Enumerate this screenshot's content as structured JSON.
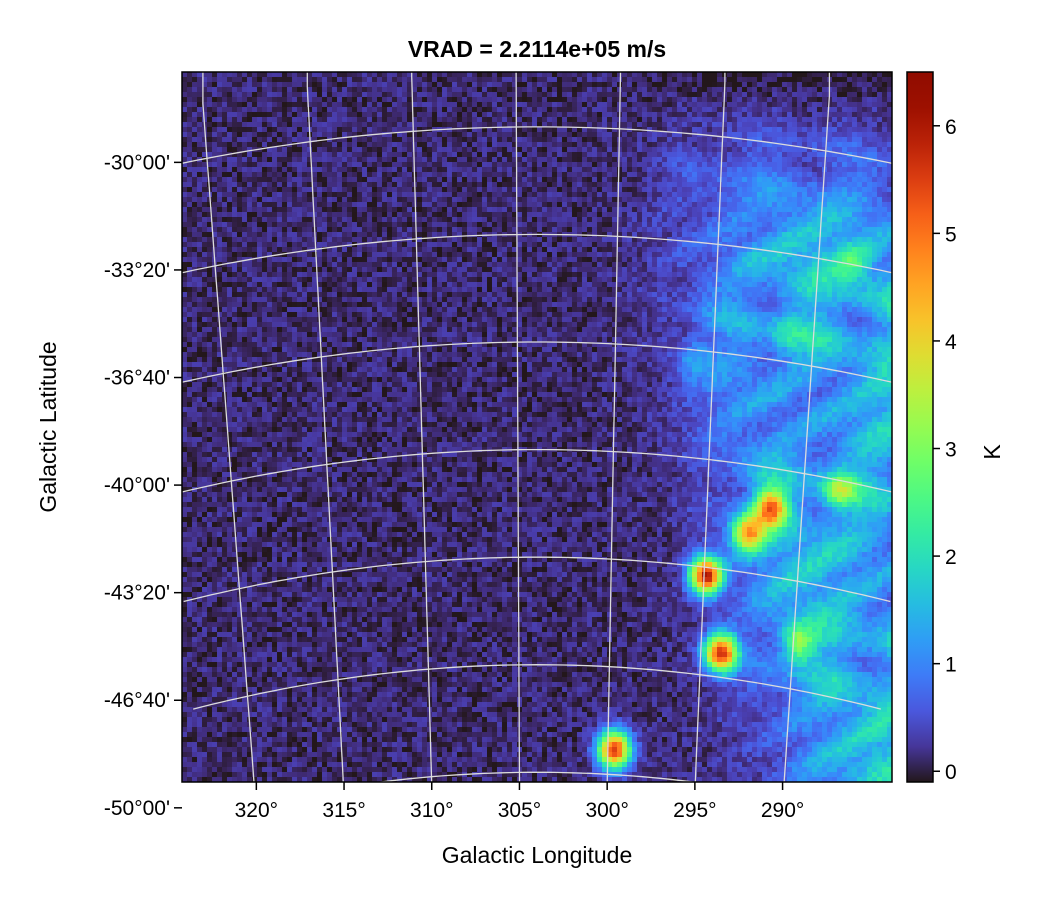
{
  "chart_data": {
    "type": "heatmap",
    "title": "VRAD = 2.2114e+05 m/s",
    "xlabel": "Galactic Longitude",
    "ylabel": "Galactic Latitude",
    "x_ticks": [
      {
        "value": 320,
        "label": "320°"
      },
      {
        "value": 315,
        "label": "315°"
      },
      {
        "value": 310,
        "label": "310°"
      },
      {
        "value": 305,
        "label": "305°"
      },
      {
        "value": 300,
        "label": "300°"
      },
      {
        "value": 295,
        "label": "295°"
      },
      {
        "value": 290,
        "label": "290°"
      }
    ],
    "y_ticks": [
      {
        "value": -30.0,
        "label": "-30°00'"
      },
      {
        "value": -33.3333,
        "label": "-33°20'"
      },
      {
        "value": -36.6667,
        "label": "-36°40'"
      },
      {
        "value": -40.0,
        "label": "-40°00'"
      },
      {
        "value": -43.3333,
        "label": "-43°20'"
      },
      {
        "value": -46.6667,
        "label": "-46°40'"
      },
      {
        "value": -50.0,
        "label": "-50°00'"
      }
    ],
    "xlim": [
      321,
      287
    ],
    "ylim": [
      -50.3,
      -28.3
    ],
    "colorbar": {
      "label": "K",
      "range": [
        -0.1,
        6.5
      ],
      "ticks": [
        0,
        1,
        2,
        3,
        4,
        5,
        6
      ],
      "tick_labels": [
        "0",
        "1",
        "2",
        "3",
        "4",
        "5",
        "6"
      ],
      "colormap": "turbo"
    },
    "grid": true,
    "grid_color": "#dcdcdc",
    "background_level_K": 0.1,
    "emission_regions": [
      {
        "l": 295.9,
        "b": -43.9,
        "peak_K": 6.4
      },
      {
        "l": 295.2,
        "b": -46.3,
        "peak_K": 6.2
      },
      {
        "l": 300.3,
        "b": -49.3,
        "peak_K": 6.3
      },
      {
        "l": 292.8,
        "b": -41.8,
        "peak_K": 4.8
      },
      {
        "l": 293.9,
        "b": -42.6,
        "peak_K": 4.5
      },
      {
        "l": 291.5,
        "b": -46.0,
        "peak_K": 3.0
      },
      {
        "l": 289.5,
        "b": -41.3,
        "peak_K": 2.8
      },
      {
        "l": 288.8,
        "b": -34.3,
        "peak_K": 1.8
      },
      {
        "l": 296.5,
        "b": -37.2,
        "peak_K": 1.6
      },
      {
        "l": 292.0,
        "b": -36.5,
        "peak_K": 1.5
      }
    ]
  }
}
